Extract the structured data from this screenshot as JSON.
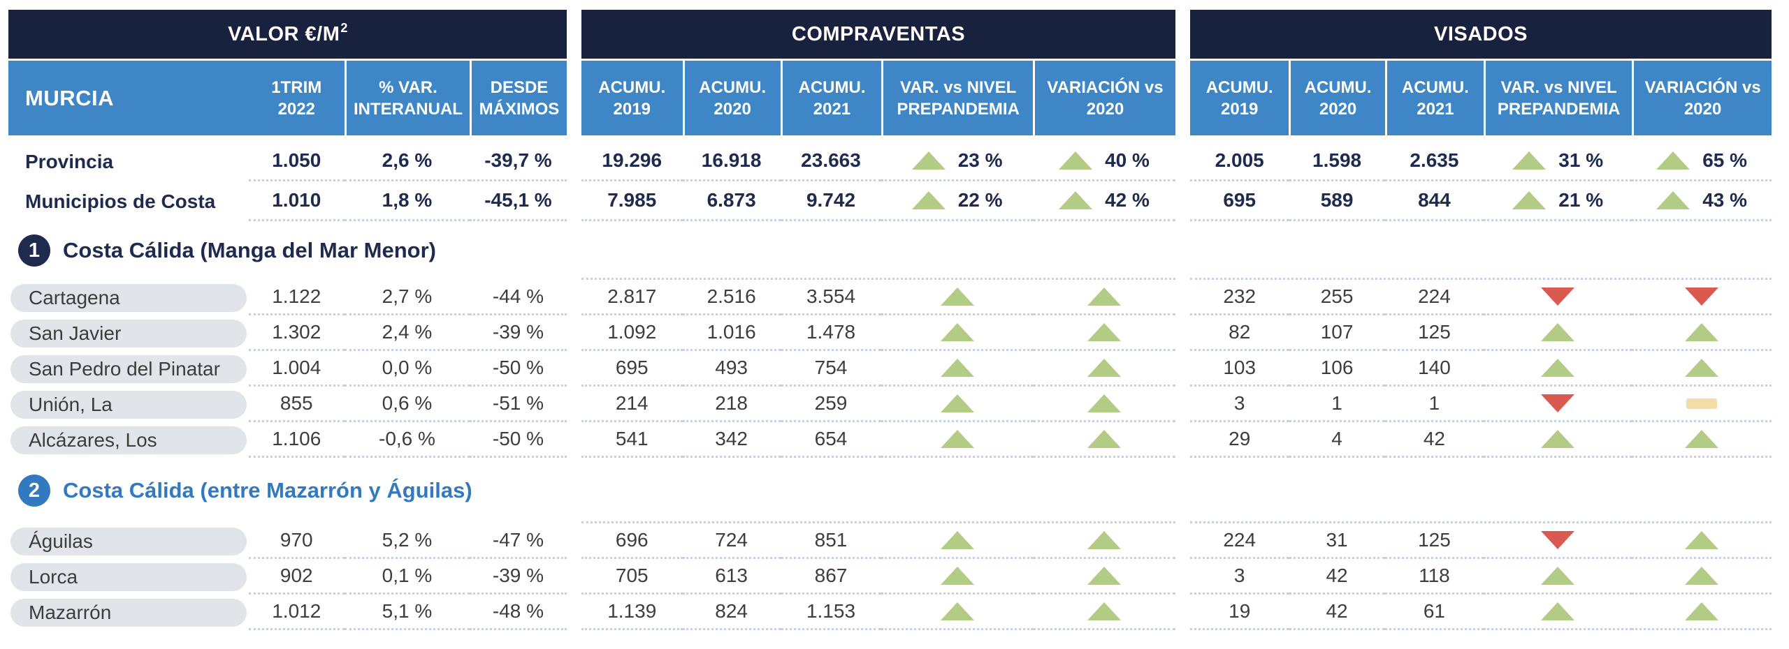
{
  "palette": {
    "header_bg": "#18223f",
    "subheader_bg": "#3e86c6",
    "navy_text": "#1e2a4e",
    "pill_bg": "#e1e4e9",
    "body_text": "#3d3d3d",
    "dotted_line": "#c7d1de",
    "up": "#b2cb85",
    "down": "#da5a52",
    "flat": "#f2dda6"
  },
  "chart_data": {
    "type": "table",
    "region": "MURCIA",
    "blocks": {
      "valor": {
        "title": "VALOR €/M",
        "title_sup": "2",
        "columns": [
          [
            "1TRIM",
            "2022"
          ],
          [
            "% VAR.",
            "INTERANUAL"
          ],
          [
            "DESDE",
            "MÁXIMOS"
          ]
        ]
      },
      "compraventas": {
        "title": "COMPRAVENTAS",
        "columns": [
          [
            "ACUMU.",
            "2019"
          ],
          [
            "ACUMU.",
            "2020"
          ],
          [
            "ACUMU.",
            "2021"
          ],
          [
            "VAR. vs NIVEL",
            "PREPANDEMIA"
          ],
          [
            "VARIACIÓN vs",
            "2020"
          ]
        ]
      },
      "visados": {
        "title": "VISADOS",
        "columns": [
          [
            "ACUMU.",
            "2019"
          ],
          [
            "ACUMU.",
            "2020"
          ],
          [
            "ACUMU.",
            "2021"
          ],
          [
            "VAR. vs NIVEL",
            "PREPANDEMIA"
          ],
          [
            "VARIACIÓN vs",
            "2020"
          ]
        ]
      }
    },
    "summary_rows": [
      {
        "name": "Provincia",
        "valor": [
          "1.050",
          "2,6 %",
          "-39,7 %"
        ],
        "compraventas": {
          "acumu": [
            "19.296",
            "16.918",
            "23.663"
          ],
          "var_vs_prepandemia": {
            "dir": "up",
            "label": "23 %"
          },
          "variacion_vs_2020": {
            "dir": "up",
            "label": "40 %"
          }
        },
        "visados": {
          "acumu": [
            "2.005",
            "1.598",
            "2.635"
          ],
          "var_vs_prepandemia": {
            "dir": "up",
            "label": "31 %"
          },
          "variacion_vs_2020": {
            "dir": "up",
            "label": "65 %"
          }
        }
      },
      {
        "name": "Municipios de Costa",
        "valor": [
          "1.010",
          "1,8 %",
          "-45,1 %"
        ],
        "compraventas": {
          "acumu": [
            "7.985",
            "6.873",
            "9.742"
          ],
          "var_vs_prepandemia": {
            "dir": "up",
            "label": "22 %"
          },
          "variacion_vs_2020": {
            "dir": "up",
            "label": "42 %"
          }
        },
        "visados": {
          "acumu": [
            "695",
            "589",
            "844"
          ],
          "var_vs_prepandemia": {
            "dir": "up",
            "label": "21 %"
          },
          "variacion_vs_2020": {
            "dir": "up",
            "label": "43 %"
          }
        }
      }
    ],
    "sections": [
      {
        "badge": "1",
        "title": "Costa Cálida (Manga del Mar Menor)",
        "color": "#1e2a4e",
        "rows": [
          {
            "name": "Cartagena",
            "valor": [
              "1.122",
              "2,7 %",
              "-44 %"
            ],
            "compraventas": {
              "acumu": [
                "2.817",
                "2.516",
                "3.554"
              ],
              "var_vs_prepandemia": {
                "dir": "up"
              },
              "variacion_vs_2020": {
                "dir": "up"
              }
            },
            "visados": {
              "acumu": [
                "232",
                "255",
                "224"
              ],
              "var_vs_prepandemia": {
                "dir": "down"
              },
              "variacion_vs_2020": {
                "dir": "down"
              }
            }
          },
          {
            "name": "San Javier",
            "valor": [
              "1.302",
              "2,4 %",
              "-39 %"
            ],
            "compraventas": {
              "acumu": [
                "1.092",
                "1.016",
                "1.478"
              ],
              "var_vs_prepandemia": {
                "dir": "up"
              },
              "variacion_vs_2020": {
                "dir": "up"
              }
            },
            "visados": {
              "acumu": [
                "82",
                "107",
                "125"
              ],
              "var_vs_prepandemia": {
                "dir": "up"
              },
              "variacion_vs_2020": {
                "dir": "up"
              }
            }
          },
          {
            "name": "San Pedro del Pinatar",
            "valor": [
              "1.004",
              "0,0 %",
              "-50 %"
            ],
            "compraventas": {
              "acumu": [
                "695",
                "493",
                "754"
              ],
              "var_vs_prepandemia": {
                "dir": "up"
              },
              "variacion_vs_2020": {
                "dir": "up"
              }
            },
            "visados": {
              "acumu": [
                "103",
                "106",
                "140"
              ],
              "var_vs_prepandemia": {
                "dir": "up"
              },
              "variacion_vs_2020": {
                "dir": "up"
              }
            }
          },
          {
            "name": "Unión, La",
            "valor": [
              "855",
              "0,6 %",
              "-51 %"
            ],
            "compraventas": {
              "acumu": [
                "214",
                "218",
                "259"
              ],
              "var_vs_prepandemia": {
                "dir": "up"
              },
              "variacion_vs_2020": {
                "dir": "up"
              }
            },
            "visados": {
              "acumu": [
                "3",
                "1",
                "1"
              ],
              "var_vs_prepandemia": {
                "dir": "down"
              },
              "variacion_vs_2020": {
                "dir": "flat"
              }
            }
          },
          {
            "name": "Alcázares, Los",
            "valor": [
              "1.106",
              "-0,6 %",
              "-50 %"
            ],
            "compraventas": {
              "acumu": [
                "541",
                "342",
                "654"
              ],
              "var_vs_prepandemia": {
                "dir": "up"
              },
              "variacion_vs_2020": {
                "dir": "up"
              }
            },
            "visados": {
              "acumu": [
                "29",
                "4",
                "42"
              ],
              "var_vs_prepandemia": {
                "dir": "up"
              },
              "variacion_vs_2020": {
                "dir": "up"
              }
            }
          }
        ]
      },
      {
        "badge": "2",
        "title": "Costa Cálida (entre Mazarrón y Águilas)",
        "color": "#3379bf",
        "rows": [
          {
            "name": "Águilas",
            "valor": [
              "970",
              "5,2 %",
              "-47 %"
            ],
            "compraventas": {
              "acumu": [
                "696",
                "724",
                "851"
              ],
              "var_vs_prepandemia": {
                "dir": "up"
              },
              "variacion_vs_2020": {
                "dir": "up"
              }
            },
            "visados": {
              "acumu": [
                "224",
                "31",
                "125"
              ],
              "var_vs_prepandemia": {
                "dir": "down"
              },
              "variacion_vs_2020": {
                "dir": "up"
              }
            }
          },
          {
            "name": "Lorca",
            "valor": [
              "902",
              "0,1 %",
              "-39 %"
            ],
            "compraventas": {
              "acumu": [
                "705",
                "613",
                "867"
              ],
              "var_vs_prepandemia": {
                "dir": "up"
              },
              "variacion_vs_2020": {
                "dir": "up"
              }
            },
            "visados": {
              "acumu": [
                "3",
                "42",
                "118"
              ],
              "var_vs_prepandemia": {
                "dir": "up"
              },
              "variacion_vs_2020": {
                "dir": "up"
              }
            }
          },
          {
            "name": "Mazarrón",
            "valor": [
              "1.012",
              "5,1 %",
              "-48 %"
            ],
            "compraventas": {
              "acumu": [
                "1.139",
                "824",
                "1.153"
              ],
              "var_vs_prepandemia": {
                "dir": "up"
              },
              "variacion_vs_2020": {
                "dir": "up"
              }
            },
            "visados": {
              "acumu": [
                "19",
                "42",
                "61"
              ],
              "var_vs_prepandemia": {
                "dir": "up"
              },
              "variacion_vs_2020": {
                "dir": "up"
              }
            }
          }
        ]
      }
    ]
  }
}
